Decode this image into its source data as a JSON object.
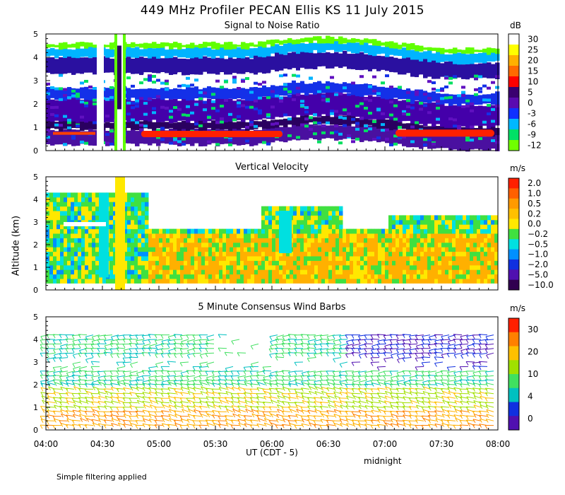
{
  "main_title": "449 MHz Profiler PECAN Ellis KS 11 July 2015",
  "x_axis": {
    "label": "UT  (CDT - 5)",
    "ticks": [
      "04:00",
      "04:30",
      "05:00",
      "05:30",
      "06:00",
      "06:30",
      "07:00",
      "07:30",
      "08:00"
    ],
    "annotation": "midnight"
  },
  "y_axis_label": "Altitude (km)",
  "footnote": "Simple filtering applied",
  "colors": {
    "white": "#ffffff",
    "yellow": "#ffff00",
    "orange": "#ffb000",
    "dark_orange": "#ff8000",
    "red": "#ff2000",
    "dark_purple": "#2a0060",
    "purple": "#4400aa",
    "blue": "#1430e8",
    "cyan": "#00b4ff",
    "green": "#00e060",
    "lime": "#60ff00",
    "light_green": "#00ff80"
  },
  "chart_data": [
    {
      "type": "heatmap",
      "title": "Signal to Noise Ratio",
      "unit": "dB",
      "ylim": [
        0,
        5
      ],
      "yticks": [
        "0",
        "1",
        "2",
        "3",
        "4",
        "5"
      ],
      "colorbar": {
        "labels": [
          "30",
          "25",
          "20",
          "15",
          "10",
          "5",
          "0",
          "-3",
          "-6",
          "-9",
          "-12"
        ],
        "colors": [
          "#ffffff",
          "#ffff00",
          "#ffb000",
          "#ff6a00",
          "#ff0000",
          "#3a0070",
          "#5a0ab0",
          "#1030ff",
          "#00b8ff",
          "#00e066",
          "#70ff00"
        ]
      }
    },
    {
      "type": "heatmap",
      "title": "Vertical Velocity",
      "unit": "m/s",
      "ylim": [
        0,
        5
      ],
      "yticks": [
        "0",
        "1",
        "2",
        "3",
        "4",
        "5"
      ],
      "colorbar": {
        "labels": [
          "2.0",
          "1.0",
          "0.5",
          "0.2",
          "0.0",
          "−0.2",
          "−0.5",
          "−1.0",
          "−2.0",
          "−5.0",
          "−10.0"
        ],
        "colors": [
          "#ff2000",
          "#ff6000",
          "#ff9a00",
          "#ffc000",
          "#ffe800",
          "#40e040",
          "#00e0e0",
          "#0090ff",
          "#1030e0",
          "#5010b0",
          "#300050"
        ]
      }
    },
    {
      "type": "scatter",
      "title": "5 Minute Consensus Wind Barbs",
      "unit": "m/s",
      "ylim": [
        0,
        5
      ],
      "yticks": [
        "0",
        "1",
        "2",
        "3",
        "4",
        "5"
      ],
      "colorbar": {
        "labels": [
          "30",
          "20",
          "10",
          "4",
          "0"
        ],
        "colors": [
          "#ff2000",
          "#ff8000",
          "#ffc000",
          "#a0e000",
          "#40e060",
          "#00c0c0",
          "#1030e0",
          "#5010b0"
        ]
      }
    }
  ]
}
